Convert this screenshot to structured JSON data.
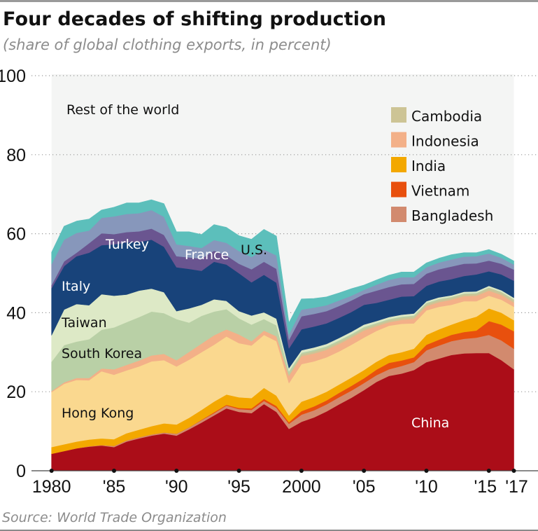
{
  "header": {
    "title": "Four decades of shifting production",
    "subtitle": "(share of global clothing exports, in percent)"
  },
  "footer": {
    "source": "Source: World Trade Organization"
  },
  "chart_data": {
    "type": "area",
    "stacked": true,
    "title": "Four decades of shifting production",
    "subtitle": "(share of global clothing exports, in percent)",
    "xlabel": "",
    "ylabel": "",
    "ylim": [
      0,
      100
    ],
    "xlim": [
      1980,
      2017
    ],
    "grid": "horizontal-dotted",
    "y_ticks": [
      0,
      20,
      40,
      60,
      80,
      100
    ],
    "x_ticks": [
      {
        "year": 1980,
        "label": "1980"
      },
      {
        "year": 1985,
        "label": "'85"
      },
      {
        "year": 1990,
        "label": "'90"
      },
      {
        "year": 1995,
        "label": "'95"
      },
      {
        "year": 2000,
        "label": "2000"
      },
      {
        "year": 2005,
        "label": "'05"
      },
      {
        "year": 2010,
        "label": "'10"
      },
      {
        "year": 2015,
        "label": "'15"
      },
      {
        "year": 2017,
        "label": "'17"
      }
    ],
    "background_label": "Rest of the world",
    "x": [
      1980,
      1981,
      1982,
      1983,
      1984,
      1985,
      1986,
      1987,
      1988,
      1989,
      1990,
      1991,
      1992,
      1993,
      1994,
      1995,
      1996,
      1997,
      1998,
      1999,
      2000,
      2001,
      2002,
      2003,
      2004,
      2005,
      2006,
      2007,
      2008,
      2009,
      2010,
      2011,
      2012,
      2013,
      2014,
      2015,
      2016,
      2017
    ],
    "series": [
      {
        "name": "China",
        "color": "#ab0d18",
        "label": "China",
        "values": [
          4.3,
          5.0,
          5.7,
          6.1,
          6.4,
          6.0,
          7.4,
          8.2,
          8.9,
          9.4,
          8.9,
          10.5,
          12.2,
          14.0,
          15.8,
          14.9,
          14.6,
          16.9,
          14.9,
          10.6,
          12.4,
          13.5,
          15.0,
          16.8,
          18.5,
          20.4,
          22.5,
          24.0,
          24.6,
          25.5,
          27.5,
          28.4,
          29.3,
          29.7,
          29.8,
          29.8,
          28.0,
          25.7
        ]
      },
      {
        "name": "Bangladesh",
        "color": "#d28a6e",
        "label": null,
        "values": [
          0.0,
          0.0,
          0.0,
          0.1,
          0.1,
          0.3,
          0.3,
          0.3,
          0.3,
          0.3,
          0.5,
          0.5,
          0.6,
          0.6,
          0.7,
          0.7,
          0.8,
          0.8,
          1.0,
          1.3,
          1.8,
          1.8,
          1.8,
          1.8,
          1.8,
          1.8,
          1.7,
          1.7,
          1.9,
          2.0,
          3.0,
          3.3,
          3.5,
          3.7,
          3.9,
          4.6,
          5.0,
          5.2
        ]
      },
      {
        "name": "Vietnam",
        "color": "#e8500e",
        "label": null,
        "values": [
          0.0,
          0.0,
          0.0,
          0.0,
          0.0,
          0.0,
          0.0,
          0.0,
          0.0,
          0.0,
          0.0,
          0.0,
          0.1,
          0.2,
          0.2,
          0.3,
          0.4,
          0.5,
          0.5,
          0.4,
          0.9,
          1.0,
          1.0,
          1.1,
          1.2,
          1.2,
          1.4,
          1.6,
          1.4,
          1.2,
          1.4,
          1.5,
          1.6,
          1.7,
          1.8,
          3.5,
          4.0,
          4.4
        ]
      },
      {
        "name": "India",
        "color": "#f3a800",
        "label": null,
        "values": [
          1.7,
          1.7,
          1.7,
          1.7,
          1.7,
          1.7,
          1.8,
          1.9,
          2.1,
          2.3,
          2.3,
          2.4,
          2.5,
          2.7,
          2.6,
          2.7,
          2.6,
          2.8,
          2.6,
          1.7,
          2.4,
          2.3,
          2.2,
          2.1,
          2.1,
          2.1,
          2.0,
          2.0,
          2.1,
          2.2,
          2.5,
          2.6,
          2.6,
          3.0,
          3.5,
          3.2,
          3.0,
          2.8
        ]
      },
      {
        "name": "Hong Kong",
        "color": "#fad88f",
        "label": "Hong Kong",
        "values": [
          13.9,
          15.3,
          15.6,
          15.0,
          17.0,
          16.3,
          15.9,
          16.0,
          16.4,
          16.0,
          14.7,
          14.7,
          14.6,
          14.4,
          14.7,
          13.7,
          13.3,
          13.4,
          13.8,
          8.2,
          9.5,
          9.1,
          8.7,
          8.4,
          8.3,
          8.2,
          7.8,
          7.4,
          7.2,
          6.4,
          6.2,
          5.7,
          5.0,
          4.8,
          3.9,
          3.2,
          3.3,
          3.4
        ]
      },
      {
        "name": "Indonesia",
        "color": "#f3b088",
        "label": null,
        "values": [
          0.3,
          0.4,
          0.5,
          0.6,
          0.7,
          1.4,
          1.4,
          1.5,
          1.5,
          1.6,
          1.6,
          2.0,
          2.2,
          2.4,
          1.8,
          2.2,
          1.1,
          1.1,
          1.2,
          1.8,
          2.0,
          2.0,
          1.9,
          1.9,
          1.8,
          1.8,
          1.2,
          0.9,
          1.0,
          1.2,
          1.1,
          1.2,
          1.3,
          1.3,
          1.4,
          1.3,
          1.2,
          1.1
        ]
      },
      {
        "name": "Cambodia",
        "color": "#cdc495",
        "label": null,
        "values": [
          0.0,
          0.0,
          0.0,
          0.0,
          0.0,
          0.0,
          0.0,
          0.0,
          0.0,
          0.0,
          0.0,
          0.0,
          0.0,
          0.0,
          0.0,
          0.0,
          0.0,
          0.0,
          0.1,
          0.4,
          0.5,
          0.5,
          0.5,
          0.5,
          0.5,
          0.5,
          0.5,
          0.5,
          0.5,
          0.5,
          0.5,
          0.5,
          0.5,
          0.5,
          0.5,
          0.6,
          0.6,
          0.6
        ]
      },
      {
        "name": "South Korea",
        "color": "#b9d0a6",
        "label": "South Korea",
        "values": [
          7.4,
          9.4,
          9.2,
          9.8,
          9.8,
          10.6,
          10.8,
          11.0,
          11.1,
          10.3,
          10.4,
          7.4,
          7.0,
          6.0,
          5.1,
          4.1,
          4.2,
          2.9,
          2.7,
          0.8,
          0.4,
          0.4,
          0.4,
          0.4,
          0.4,
          0.4,
          0.3,
          0.3,
          0.3,
          0.3,
          0.3,
          0.3,
          0.2,
          0.2,
          0.2,
          0.2,
          0.2,
          0.2
        ]
      },
      {
        "name": "Taiwan",
        "color": "#dde9c6",
        "label": "Taiwan",
        "values": [
          6.7,
          9.0,
          9.5,
          8.6,
          9.0,
          8.0,
          7.0,
          6.7,
          5.8,
          5.3,
          2.0,
          3.6,
          2.8,
          3.1,
          2.1,
          1.8,
          2.3,
          1.7,
          1.7,
          0.8,
          0.6,
          0.6,
          0.6,
          0.6,
          0.6,
          0.6,
          0.5,
          0.5,
          0.5,
          0.5,
          0.4,
          0.4,
          0.4,
          0.4,
          0.4,
          0.4,
          0.4,
          0.4
        ]
      },
      {
        "name": "Italy",
        "color": "#18437a",
        "label": "Italy",
        "values": [
          11.9,
          11.0,
          12.1,
          13.3,
          12.4,
          13.0,
          13.2,
          12.3,
          12.4,
          11.5,
          11.1,
          10.0,
          8.6,
          9.5,
          9.2,
          9.6,
          8.4,
          9.5,
          9.1,
          5.0,
          5.3,
          5.3,
          5.2,
          5.1,
          5.0,
          5.0,
          4.6,
          4.4,
          4.6,
          4.4,
          3.9,
          4.0,
          4.1,
          4.0,
          4.3,
          3.7,
          4.0,
          4.3
        ]
      },
      {
        "name": "Turkey",
        "color": "#6a5590",
        "label": "Turkey",
        "values": [
          0.8,
          1.2,
          0.9,
          2.4,
          3.0,
          2.6,
          2.6,
          2.7,
          2.8,
          3.0,
          2.8,
          2.9,
          3.1,
          2.8,
          2.3,
          2.4,
          3.3,
          3.3,
          3.5,
          2.1,
          3.3,
          3.2,
          3.1,
          3.0,
          2.9,
          2.7,
          3.1,
          3.2,
          3.1,
          3.1,
          3.1,
          3.1,
          3.2,
          3.1,
          2.8,
          2.7,
          2.7,
          2.8
        ]
      },
      {
        "name": "France",
        "color": "#8797bb",
        "label": "France",
        "values": [
          5.3,
          5.5,
          5.0,
          3.2,
          3.9,
          4.5,
          4.6,
          4.6,
          4.7,
          4.6,
          3.0,
          2.9,
          2.7,
          2.7,
          3.2,
          3.2,
          3.1,
          3.1,
          3.4,
          1.4,
          1.7,
          1.6,
          1.5,
          1.4,
          1.2,
          1.1,
          1.5,
          1.8,
          1.8,
          1.7,
          1.6,
          1.7,
          1.8,
          1.8,
          1.8,
          1.8,
          1.5,
          1.3
        ]
      },
      {
        "name": "U.S.",
        "color": "#5cbfbb",
        "label": "U.S.",
        "values": [
          3.0,
          3.4,
          3.0,
          2.9,
          2.0,
          2.3,
          2.8,
          2.6,
          2.6,
          3.3,
          3.2,
          3.6,
          3.4,
          3.9,
          3.9,
          3.9,
          4.5,
          5.1,
          4.9,
          3.0,
          2.7,
          2.3,
          2.1,
          1.9,
          1.8,
          1.2,
          1.2,
          1.2,
          1.3,
          1.3,
          1.1,
          1.1,
          1.2,
          1.0,
          0.9,
          1.0,
          0.9,
          0.9
        ]
      }
    ],
    "legend": {
      "placement": "top-right",
      "entries": [
        {
          "name": "Cambodia",
          "color": "#cdc495"
        },
        {
          "name": "Indonesia",
          "color": "#f3b088"
        },
        {
          "name": "India",
          "color": "#f3a800"
        },
        {
          "name": "Vietnam",
          "color": "#e8500e"
        },
        {
          "name": "Bangladesh",
          "color": "#d28a6e"
        }
      ]
    },
    "plot_background_color": "#f4f5f4"
  }
}
